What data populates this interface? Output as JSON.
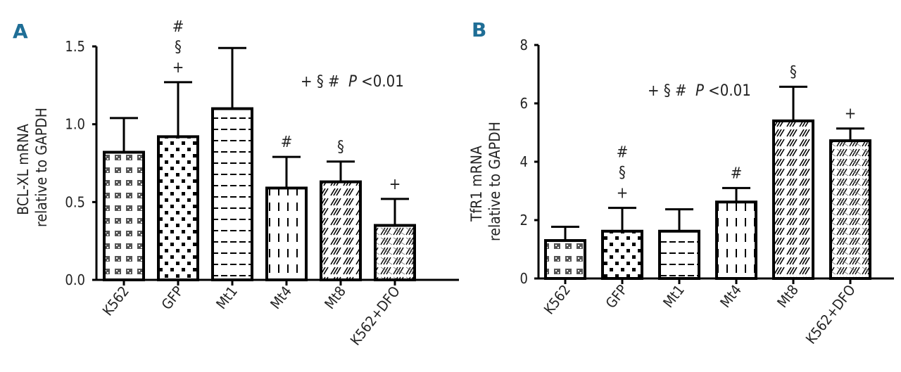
{
  "chart_data": [
    {
      "type": "bar",
      "panel_label": "A",
      "ylabel_lines": [
        "BCL-XL mRNA",
        "relative to GAPDH"
      ],
      "categories": [
        "K562",
        "GFP",
        "Mt1",
        "Mt4",
        "Mt8",
        "K562+DFO"
      ],
      "values": [
        0.82,
        0.92,
        1.1,
        0.59,
        0.63,
        0.35
      ],
      "errors": [
        0.22,
        0.35,
        0.39,
        0.2,
        0.13,
        0.17
      ],
      "ylim": [
        0,
        1.5
      ],
      "yticks": [
        "0.0",
        "0.5",
        "1.0",
        "1.5"
      ],
      "significance_marks": [
        [],
        [
          "#",
          "§",
          "+"
        ],
        [],
        [
          "#"
        ],
        [
          "§"
        ],
        [
          "+"
        ]
      ],
      "annotation": {
        "symbols": "+ § #",
        "p_letter": "P",
        "p_rest": "<0.01"
      },
      "patterns": [
        "dotgrid",
        "squares",
        "hlines",
        "vdash",
        "diag",
        "diagdense"
      ]
    },
    {
      "type": "bar",
      "panel_label": "B",
      "ylabel_lines": [
        "TfR1 mRNA",
        "relative to GAPDH"
      ],
      "categories": [
        "K562",
        "GFP",
        "Mt1",
        "Mt4",
        "Mt8",
        "K562+DFO"
      ],
      "values": [
        1.3,
        1.62,
        1.62,
        2.62,
        5.4,
        4.72
      ],
      "errors": [
        0.47,
        0.8,
        0.75,
        0.48,
        1.17,
        0.42
      ],
      "ylim": [
        0,
        8
      ],
      "yticks": [
        "0",
        "2",
        "4",
        "6",
        "8"
      ],
      "significance_marks": [
        [],
        [
          "#",
          "§",
          "+"
        ],
        [],
        [
          "#"
        ],
        [
          "§"
        ],
        [
          "+"
        ]
      ],
      "annotation": {
        "symbols": "+ § #",
        "p_letter": "P",
        "p_rest": "<0.01"
      },
      "patterns": [
        "dotgrid",
        "squares",
        "hlines",
        "vdash",
        "diag",
        "diagdense"
      ]
    }
  ]
}
